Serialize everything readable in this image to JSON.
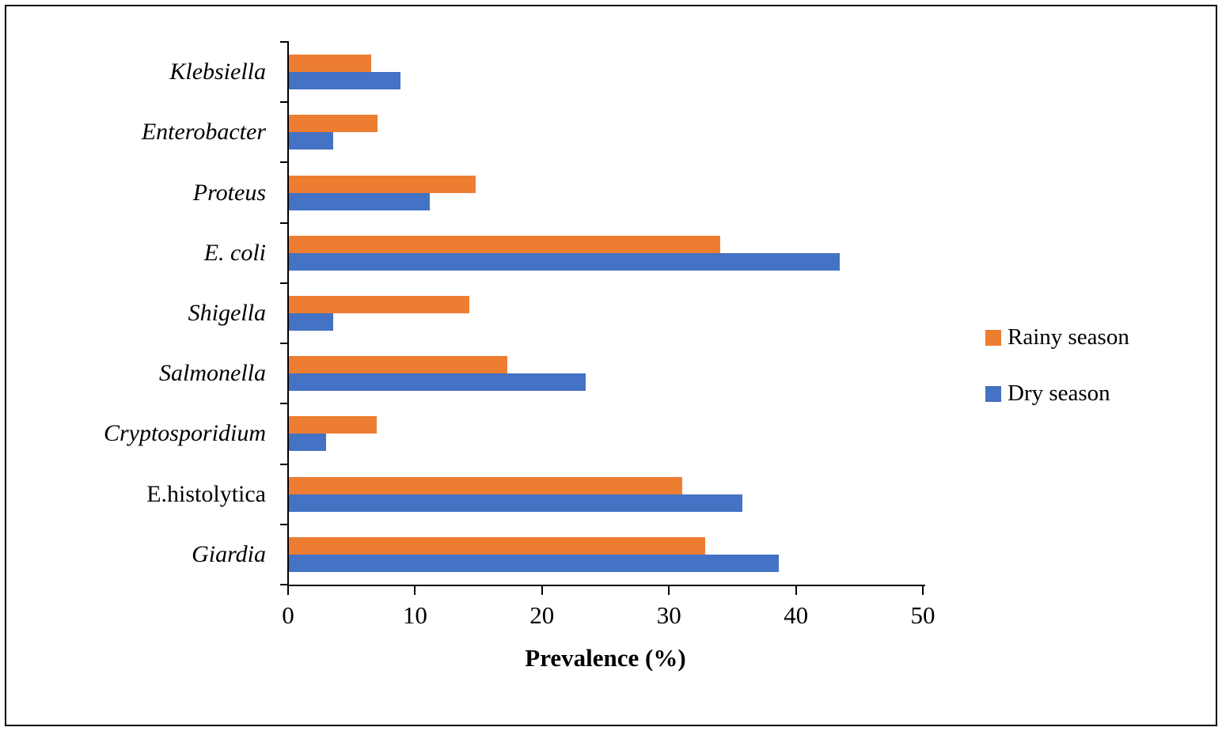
{
  "chart_data": {
    "type": "bar",
    "orientation": "horizontal",
    "title": "",
    "xlabel": "Prevalence (%)",
    "ylabel": "",
    "xlim": [
      0,
      50
    ],
    "xticks": [
      0,
      10,
      20,
      30,
      40,
      50
    ],
    "grid": false,
    "legend_position": "right",
    "categories": [
      "Klebsiella",
      "Enterobacter",
      "Proteus",
      "E. coli",
      "Shigella",
      "Salmonella",
      "Cryptosporidium",
      "E.histolytica",
      "Giardia"
    ],
    "categories_italic": [
      true,
      true,
      true,
      true,
      true,
      true,
      true,
      false,
      true
    ],
    "series": [
      {
        "name": "Rainy season",
        "color": "#ED7D31",
        "values": [
          6.5,
          7.0,
          14.7,
          34.0,
          14.2,
          17.2,
          6.9,
          31.0,
          32.8
        ]
      },
      {
        "name": "Dry season",
        "color": "#4472C4",
        "values": [
          8.8,
          3.5,
          11.1,
          43.4,
          3.5,
          23.4,
          2.9,
          35.7,
          38.6
        ]
      }
    ]
  }
}
